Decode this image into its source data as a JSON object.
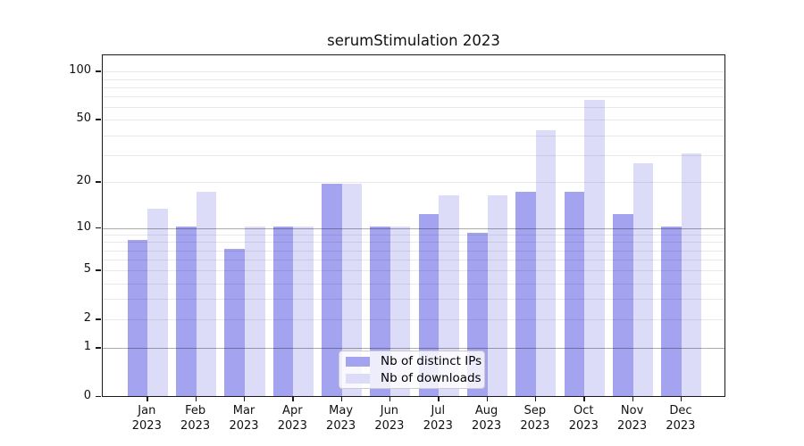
{
  "chart_data": {
    "type": "bar",
    "title": "serumStimulation 2023",
    "categories": [
      "Jan",
      "Feb",
      "Mar",
      "Apr",
      "May",
      "Jun",
      "Jul",
      "Aug",
      "Sep",
      "Oct",
      "Nov",
      "Dec"
    ],
    "x_tick_second_line": "2023",
    "series": [
      {
        "name": "Nb of distinct IPs",
        "color": "#a3a3f0",
        "values": [
          8,
          10,
          7,
          10,
          19,
          10,
          12,
          9,
          17,
          17,
          12,
          10
        ]
      },
      {
        "name": "Nb of downloads",
        "color": "#dcdcf9",
        "values": [
          13,
          17,
          10,
          10,
          19,
          10,
          16,
          16,
          42,
          65,
          26,
          30
        ]
      }
    ],
    "xlabel": "",
    "ylabel": "",
    "yscale": "log1p",
    "ylim": [
      0,
      126
    ],
    "ytick_labels": [
      0,
      1,
      2,
      5,
      10,
      20,
      50,
      100
    ],
    "minor_gridline_values": [
      3,
      4,
      6,
      7,
      8,
      9,
      30,
      40,
      60,
      70,
      80,
      90
    ],
    "emphasized_gridline_values": [
      1,
      10
    ],
    "grid": true,
    "legend_position": "lower-center"
  }
}
